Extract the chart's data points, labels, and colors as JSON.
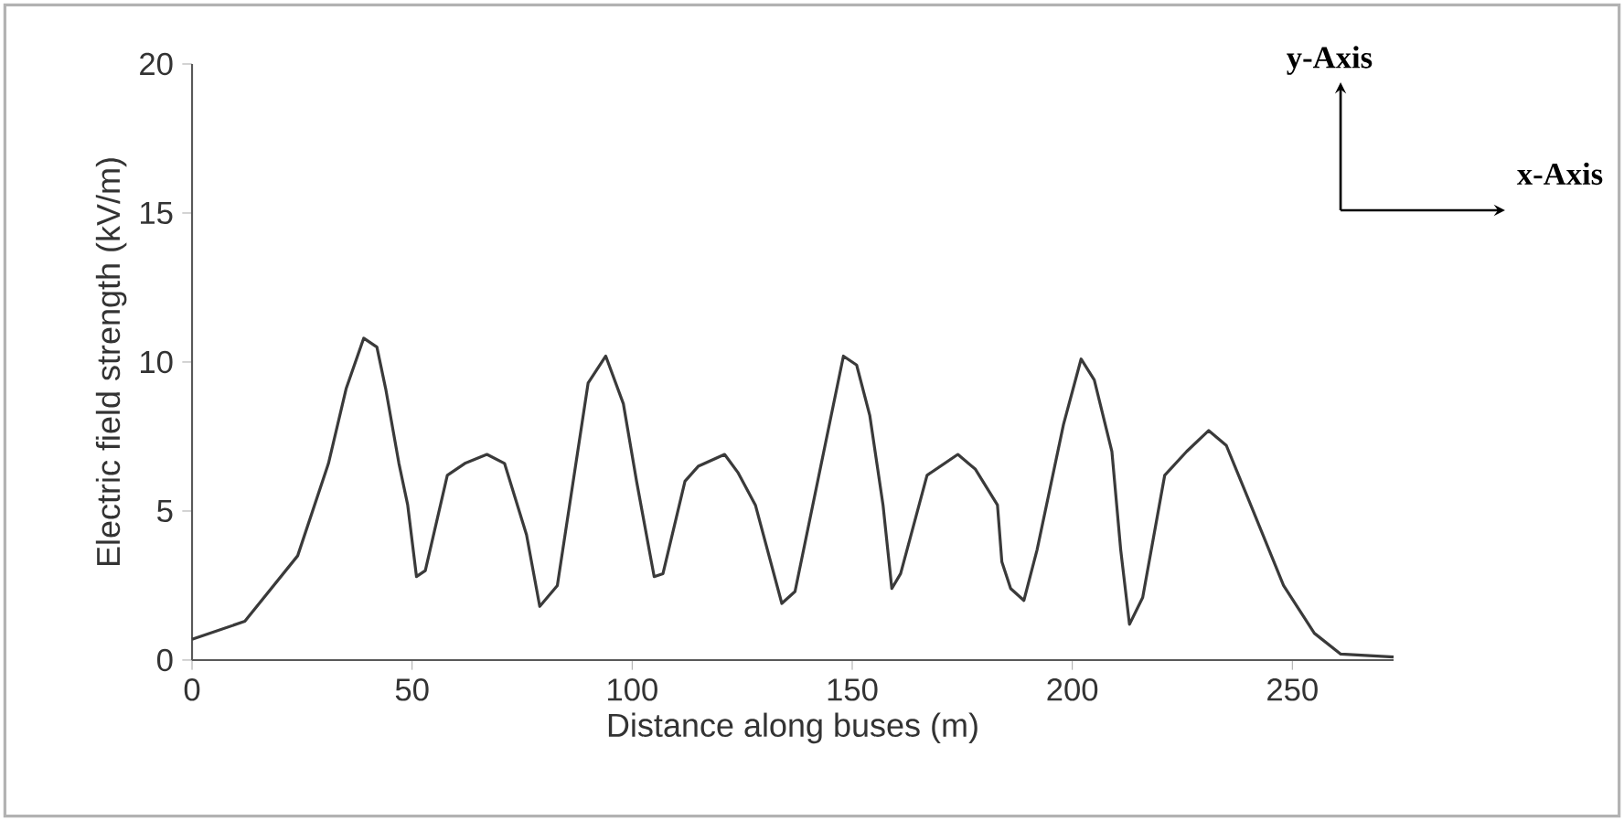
{
  "chart_data": {
    "type": "line",
    "xlabel": "Distance along buses (m)",
    "ylabel": "Electric field strength (kV/m)",
    "annotations": [
      "y-Axis",
      "x-Axis"
    ],
    "x": [
      0,
      12,
      24,
      31,
      35,
      39,
      42,
      44,
      47,
      49,
      51,
      53,
      58,
      62,
      67,
      71,
      76,
      79,
      83,
      90,
      94,
      98,
      101,
      105,
      107,
      112,
      115,
      121,
      124,
      128,
      134,
      137,
      148,
      151,
      154,
      157,
      159,
      161,
      167,
      174,
      178,
      183,
      184,
      186,
      189,
      192,
      198,
      202,
      205,
      209,
      211,
      213,
      216,
      221,
      226,
      231,
      235,
      240,
      248,
      255,
      261,
      273
    ],
    "series": [
      {
        "color": "#3a3a3a",
        "values": [
          0.7,
          1.3,
          3.5,
          6.6,
          9.1,
          10.8,
          10.5,
          9.1,
          6.6,
          5.2,
          2.8,
          3.0,
          6.2,
          6.6,
          6.9,
          6.6,
          4.2,
          1.8,
          2.5,
          9.3,
          10.2,
          8.6,
          6.0,
          2.8,
          2.9,
          6.0,
          6.5,
          6.9,
          6.3,
          5.2,
          1.9,
          2.3,
          10.2,
          9.9,
          8.2,
          5.2,
          2.4,
          2.9,
          6.2,
          6.9,
          6.4,
          5.2,
          3.3,
          2.4,
          2.0,
          3.7,
          7.9,
          10.1,
          9.4,
          7.0,
          3.7,
          1.2,
          2.1,
          6.2,
          7.0,
          7.7,
          7.2,
          5.4,
          2.5,
          0.9,
          0.2,
          0.1
        ]
      }
    ],
    "xlim": [
      0,
      273
    ],
    "ylim": [
      0,
      20
    ],
    "xticks": [
      0,
      50,
      100,
      150,
      200,
      250
    ],
    "yticks": [
      0,
      5,
      10,
      15,
      20
    ],
    "grid": false,
    "marker": "none",
    "line_style": "solid"
  }
}
